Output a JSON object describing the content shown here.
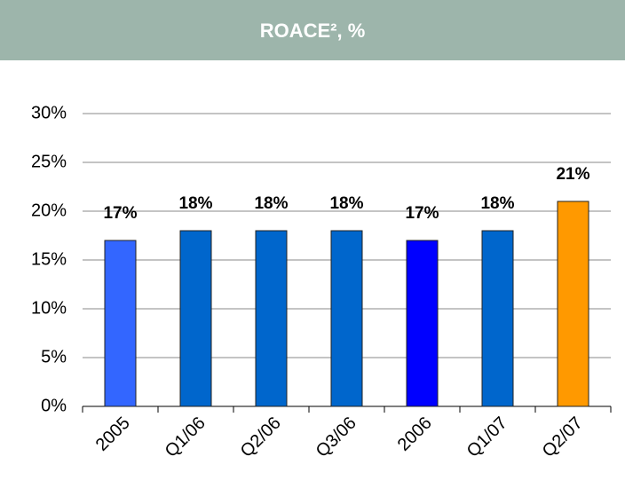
{
  "chart_data": {
    "type": "bar",
    "title": "ROACE², %",
    "categories": [
      "2005",
      "Q1/06",
      "Q2/06",
      "Q3/06",
      "2006",
      "Q1/07",
      "Q2/07"
    ],
    "values": [
      17,
      18,
      18,
      18,
      17,
      18,
      21
    ],
    "value_labels": [
      "17%",
      "18%",
      "18%",
      "18%",
      "17%",
      "18%",
      "21%"
    ],
    "colors": [
      "#3366ff",
      "#0066cc",
      "#0066cc",
      "#0066cc",
      "#0000ff",
      "#0066cc",
      "#ff9900"
    ],
    "ylim": [
      0,
      30
    ],
    "yticks": [
      {
        "value": 0,
        "label": "0%"
      },
      {
        "value": 5,
        "label": "5%"
      },
      {
        "value": 10,
        "label": "10%"
      },
      {
        "value": 15,
        "label": "15%"
      },
      {
        "value": 20,
        "label": "20%"
      },
      {
        "value": 25,
        "label": "25%"
      },
      {
        "value": 30,
        "label": "30%"
      }
    ],
    "grid": true
  }
}
